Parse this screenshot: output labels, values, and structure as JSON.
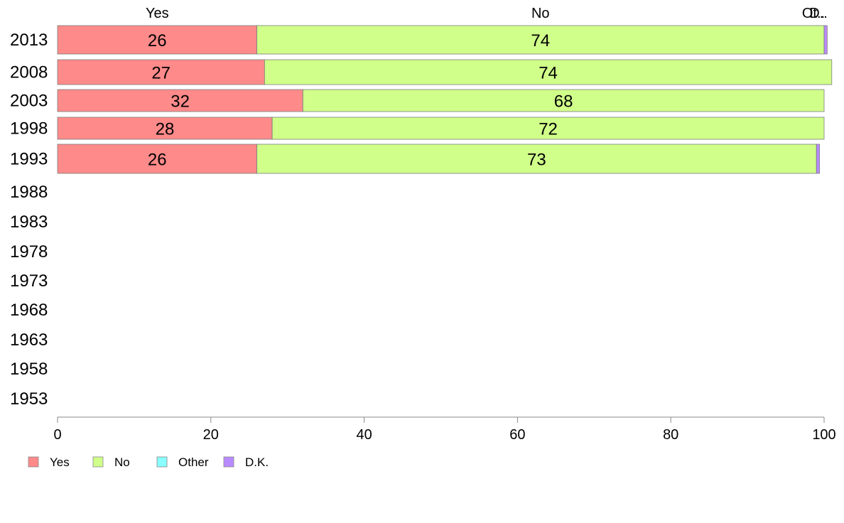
{
  "chart_data": {
    "type": "bar",
    "orientation": "horizontal",
    "stacked": true,
    "categories": [
      "2013",
      "2008",
      "2003",
      "1998",
      "1993",
      "1988",
      "1983",
      "1978",
      "1973",
      "1968",
      "1963",
      "1958",
      "1953"
    ],
    "series": [
      {
        "name": "Yes",
        "color": "#ff8a8a",
        "values": [
          26,
          27,
          32,
          28,
          26,
          null,
          null,
          null,
          null,
          null,
          null,
          null,
          null
        ]
      },
      {
        "name": "No",
        "color": "#d0ff8a",
        "values": [
          74,
          74,
          68,
          72,
          73,
          null,
          null,
          null,
          null,
          null,
          null,
          null,
          null
        ]
      },
      {
        "name": "Other",
        "color": "#8affff",
        "values": [
          0,
          0,
          0,
          0,
          0,
          null,
          null,
          null,
          null,
          null,
          null,
          null,
          null
        ]
      },
      {
        "name": "D.K.",
        "color": "#b98aff",
        "values": [
          0.4,
          0,
          0,
          0,
          0.4,
          null,
          null,
          null,
          null,
          null,
          null,
          null,
          null
        ]
      }
    ],
    "top_labels": [
      "Yes",
      "No",
      "Ot..",
      "D.."
    ],
    "xlim": [
      0,
      100
    ],
    "x_ticks": [
      0,
      20,
      40,
      60,
      80,
      100
    ],
    "grid": false,
    "legend_position": "bottom-left"
  }
}
